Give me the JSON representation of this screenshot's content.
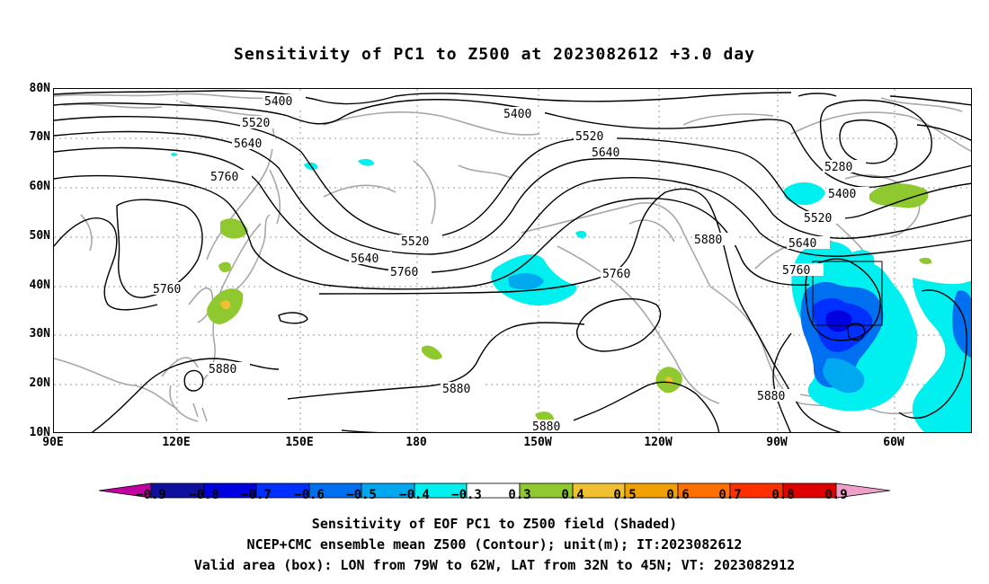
{
  "title": "Sensitivity of PC1 to Z500 at 2023082612 +3.0 day",
  "lat_labels": [
    "80N",
    "70N",
    "60N",
    "50N",
    "40N",
    "30N",
    "20N",
    "10N"
  ],
  "lon_labels": [
    "90E",
    "120E",
    "150E",
    "180",
    "150W",
    "120W",
    "90W",
    "60W"
  ],
  "contour_labels": [
    "5400",
    "5520",
    "5640",
    "5760",
    "5400",
    "5520",
    "5640",
    "5520",
    "5640",
    "5760",
    "5760",
    "5880",
    "5280",
    "5400",
    "5520",
    "5640",
    "5760",
    "5760",
    "5880",
    "5880",
    "5880",
    "5880"
  ],
  "colorbar": {
    "ticks": [
      "−0.9",
      "−0.8",
      "−0.7",
      "−0.6",
      "−0.5",
      "−0.4",
      "−0.3",
      "0.3",
      "0.4",
      "0.5",
      "0.6",
      "0.7",
      "0.8",
      "0.9"
    ],
    "colors": [
      "#c000a0",
      "#1010a0",
      "#0000e0",
      "#0030ff",
      "#0070f0",
      "#00a8f0",
      "#00f0f0",
      "#ffffff",
      "#90c830",
      "#f0c030",
      "#f0a000",
      "#ff7000",
      "#ff3000",
      "#e00000",
      "#f0a0c8"
    ]
  },
  "captions": [
    "Sensitivity of EOF PC1 to Z500 field (Shaded)",
    "NCEP+CMC ensemble mean Z500 (Contour); unit(m); IT:2023082612",
    "Valid area (box): LON from 79W to 62W, LAT from 32N to 45N; VT: 2023082912"
  ]
}
